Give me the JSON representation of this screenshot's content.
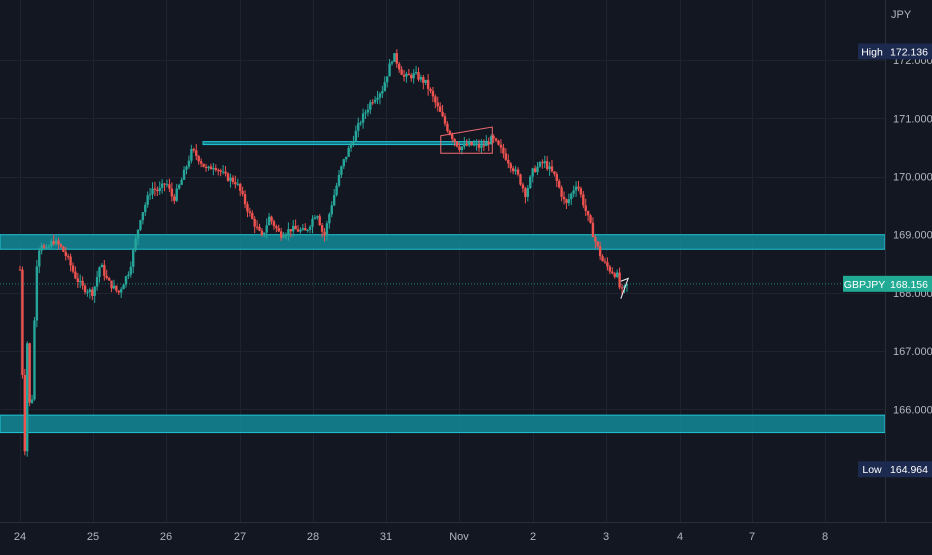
{
  "chart_data": {
    "type": "candlestick",
    "currency": "JPY",
    "symbol": "GBPJPY",
    "last_price": "168.156",
    "high_label": "High",
    "high_value": "172.136",
    "low_label": "Low",
    "low_value": "164.964",
    "ylim": [
      164.7,
      172.9
    ],
    "y_ticks": [
      {
        "value": 172.0,
        "label": "172.000"
      },
      {
        "value": 171.0,
        "label": "171.000"
      },
      {
        "value": 170.0,
        "label": "170.000"
      },
      {
        "value": 169.0,
        "label": "169.000"
      },
      {
        "value": 168.0,
        "label": "168.000"
      },
      {
        "value": 167.0,
        "label": "167.000"
      },
      {
        "value": 166.0,
        "label": "166.000"
      }
    ],
    "x_ticks": [
      "24",
      "25",
      "26",
      "27",
      "28",
      "31",
      "Nov",
      "2",
      "3",
      "4",
      "7",
      "8"
    ],
    "grid": true,
    "zones": [
      {
        "from_session": 0,
        "to_session": 11,
        "low": 168.75,
        "high": 169.0
      },
      {
        "from_session": 0,
        "to_session": 11,
        "low": 165.6,
        "high": 165.9
      },
      {
        "from_session": 2.5,
        "to_session": 6.4,
        "low": 170.55,
        "high": 170.6
      }
    ],
    "path": [
      [
        0.0,
        168.4
      ],
      [
        0.03,
        166.8
      ],
      [
        0.06,
        165.0
      ],
      [
        0.1,
        167.2
      ],
      [
        0.13,
        166.1
      ],
      [
        0.16,
        166.0
      ],
      [
        0.2,
        167.6
      ],
      [
        0.23,
        168.5
      ],
      [
        0.28,
        168.9
      ],
      [
        0.35,
        168.7
      ],
      [
        0.45,
        168.9
      ],
      [
        0.55,
        168.8
      ],
      [
        0.65,
        168.6
      ],
      [
        0.75,
        168.3
      ],
      [
        0.85,
        168.1
      ],
      [
        1.0,
        168.0
      ],
      [
        1.1,
        168.5
      ],
      [
        1.2,
        168.2
      ],
      [
        1.35,
        168.0
      ],
      [
        1.5,
        168.4
      ],
      [
        1.65,
        169.3
      ],
      [
        1.8,
        169.8
      ],
      [
        1.9,
        169.75
      ],
      [
        2.0,
        169.9
      ],
      [
        2.1,
        169.6
      ],
      [
        2.2,
        169.9
      ],
      [
        2.35,
        170.45
      ],
      [
        2.45,
        170.3
      ],
      [
        2.55,
        170.1
      ],
      [
        2.65,
        170.2
      ],
      [
        2.8,
        170.0
      ],
      [
        2.95,
        169.9
      ],
      [
        3.05,
        169.6
      ],
      [
        3.15,
        169.3
      ],
      [
        3.3,
        168.95
      ],
      [
        3.4,
        169.3
      ],
      [
        3.55,
        169.0
      ],
      [
        3.7,
        169.1
      ],
      [
        3.9,
        169.05
      ],
      [
        4.05,
        169.4
      ],
      [
        4.15,
        168.95
      ],
      [
        4.25,
        169.5
      ],
      [
        4.4,
        170.2
      ],
      [
        4.5,
        170.5
      ],
      [
        4.65,
        170.95
      ],
      [
        4.8,
        171.3
      ],
      [
        4.95,
        171.5
      ],
      [
        5.1,
        172.1
      ],
      [
        5.25,
        171.7
      ],
      [
        5.4,
        171.75
      ],
      [
        5.55,
        171.6
      ],
      [
        5.7,
        171.2
      ],
      [
        5.85,
        170.8
      ],
      [
        6.0,
        170.5
      ],
      [
        6.15,
        170.55
      ],
      [
        6.3,
        170.5
      ],
      [
        6.45,
        170.65
      ],
      [
        6.6,
        170.4
      ],
      [
        6.8,
        170.0
      ],
      [
        6.9,
        169.7
      ],
      [
        7.0,
        170.1
      ],
      [
        7.15,
        170.25
      ],
      [
        7.3,
        170.0
      ],
      [
        7.45,
        169.5
      ],
      [
        7.6,
        169.9
      ],
      [
        7.75,
        169.3
      ],
      [
        7.85,
        168.9
      ],
      [
        7.95,
        168.55
      ],
      [
        8.05,
        168.4
      ],
      [
        8.15,
        168.3
      ],
      [
        8.2,
        168.0
      ],
      [
        8.3,
        168.15
      ]
    ],
    "annotations": {
      "flag_box": {
        "s1": 5.75,
        "s2": 6.45,
        "top_left": 170.7,
        "top_right": 170.85,
        "bottom": 170.4
      },
      "wedge": {
        "s1": 8.2,
        "s2": 8.3,
        "top": 168.25,
        "bottom": 167.9
      }
    }
  }
}
